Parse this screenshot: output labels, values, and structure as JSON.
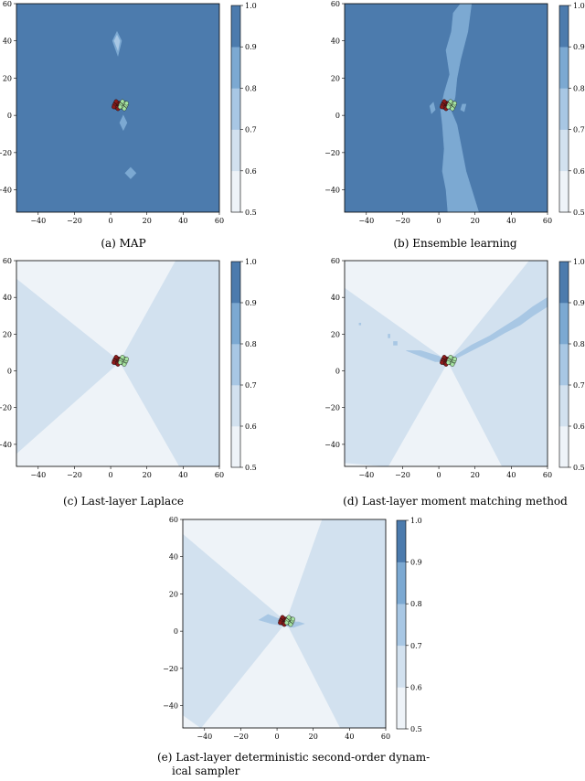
{
  "colors": {
    "level_0.5_0.6": "#eef3f8",
    "level_0.6_0.7": "#d2e1ef",
    "level_0.7_0.8": "#a8c7e4",
    "level_0.8_0.9": "#7ca9d2",
    "level_0.9_1.0": "#4c7bad",
    "class_a_points": "#8b1a1a",
    "class_b_points": "#a6e3a1"
  },
  "chart_data": [
    {
      "type": "contour",
      "caption": "(a) MAP",
      "xlim": [
        -52,
        60
      ],
      "ylim": [
        -52,
        60
      ],
      "xticks": [
        -40,
        -20,
        0,
        20,
        40,
        60
      ],
      "yticks": [
        -40,
        -20,
        0,
        20,
        40,
        60
      ],
      "colorbar": {
        "levels": [
          0.5,
          0.6,
          0.7,
          0.8,
          0.9,
          1.0
        ],
        "tick_labels": [
          "0.5",
          "0.6",
          "0.7",
          "0.8",
          "0.9",
          "1.0"
        ]
      },
      "background_level": 0.95,
      "regions": [
        {
          "level": 0.85,
          "points": [
            [
              3.5,
              45
            ],
            [
              6,
              40
            ],
            [
              4,
              32
            ],
            [
              1,
              40
            ]
          ]
        },
        {
          "level": 0.75,
          "points": [
            [
              3.5,
              43
            ],
            [
              5,
              40
            ],
            [
              4,
              35
            ],
            [
              2,
              40
            ]
          ]
        },
        {
          "level": 0.85,
          "points": [
            [
              7,
              0
            ],
            [
              9,
              -4
            ],
            [
              7,
              -8
            ],
            [
              5,
              -4
            ]
          ]
        },
        {
          "level": 0.85,
          "points": [
            [
              11,
              -28
            ],
            [
              14,
              -31
            ],
            [
              11,
              -34
            ],
            [
              8,
              -31
            ]
          ]
        }
      ],
      "data_points": [
        {
          "class": "a",
          "center": [
            3.5,
            5.5
          ]
        },
        {
          "class": "b",
          "center": [
            7,
            5.5
          ]
        }
      ]
    },
    {
      "type": "contour",
      "caption": "(b) Ensemble learning",
      "xlim": [
        -52,
        60
      ],
      "ylim": [
        -52,
        60
      ],
      "xticks": [
        -40,
        -20,
        0,
        20,
        40,
        60
      ],
      "yticks": [
        -40,
        -20,
        0,
        20,
        40,
        60
      ],
      "colorbar": {
        "levels": [
          0.5,
          0.6,
          0.7,
          0.8,
          0.9,
          1.0
        ],
        "tick_labels": [
          "0.5",
          "0.6",
          "0.7",
          "0.8",
          "0.9",
          "1.0"
        ]
      },
      "background_level": 0.95,
      "regions": [
        {
          "level": 0.85,
          "points": [
            [
              12,
              60
            ],
            [
              18,
              60
            ],
            [
              16,
              45
            ],
            [
              12,
              30
            ],
            [
              10,
              20
            ],
            [
              9,
              10
            ],
            [
              7,
              2
            ],
            [
              10,
              -5
            ],
            [
              12,
              -15
            ],
            [
              15,
              -30
            ],
            [
              22,
              -52
            ],
            [
              5,
              -52
            ],
            [
              4,
              -40
            ],
            [
              2,
              -30
            ],
            [
              3,
              -18
            ],
            [
              2,
              -5
            ],
            [
              1,
              3
            ],
            [
              3,
              12
            ],
            [
              6,
              22
            ],
            [
              4,
              35
            ],
            [
              7,
              45
            ],
            [
              8,
              55
            ]
          ]
        },
        {
          "level": 0.85,
          "points": [
            [
              -5,
              5
            ],
            [
              -3,
              7
            ],
            [
              -2,
              3
            ],
            [
              -4,
              1
            ]
          ]
        },
        {
          "level": 0.85,
          "points": [
            [
              13,
              6
            ],
            [
              15,
              6
            ],
            [
              14,
              2
            ],
            [
              12,
              3
            ]
          ]
        }
      ],
      "data_points": [
        {
          "class": "a",
          "center": [
            3.5,
            5.5
          ]
        },
        {
          "class": "b",
          "center": [
            7,
            5.5
          ]
        }
      ]
    },
    {
      "type": "contour",
      "caption": "(c) Last-layer Laplace",
      "xlim": [
        -52,
        60
      ],
      "ylim": [
        -52,
        60
      ],
      "xticks": [
        -40,
        -20,
        0,
        20,
        40,
        60
      ],
      "yticks": [
        -40,
        -20,
        0,
        20,
        40,
        60
      ],
      "colorbar": {
        "levels": [
          0.5,
          0.6,
          0.7,
          0.8,
          0.9,
          1.0
        ],
        "tick_labels": [
          "0.5",
          "0.6",
          "0.7",
          "0.8",
          "0.9",
          "1.0"
        ]
      },
      "background_level": 0.55,
      "regions": [
        {
          "level": 0.65,
          "points": [
            [
              -52,
              50
            ],
            [
              -52,
              -45
            ],
            [
              5,
              5
            ]
          ]
        },
        {
          "level": 0.65,
          "points": [
            [
              5,
              5
            ],
            [
              36,
              60
            ],
            [
              60,
              60
            ],
            [
              60,
              -52
            ],
            [
              38,
              -52
            ]
          ]
        }
      ],
      "data_points": [
        {
          "class": "a",
          "center": [
            3.5,
            5.5
          ]
        },
        {
          "class": "b",
          "center": [
            7,
            5.5
          ]
        }
      ]
    },
    {
      "type": "contour",
      "caption": "(d) Last-layer moment matching method",
      "xlim": [
        -52,
        60
      ],
      "ylim": [
        -52,
        60
      ],
      "xticks": [
        -40,
        -20,
        0,
        20,
        40,
        60
      ],
      "yticks": [
        -40,
        -20,
        0,
        20,
        40,
        60
      ],
      "colorbar": {
        "levels": [
          0.5,
          0.6,
          0.7,
          0.8,
          0.9,
          1.0
        ],
        "tick_labels": [
          "0.5",
          "0.6",
          "0.7",
          "0.8",
          "0.9",
          "1.0"
        ]
      },
      "background_level": 0.55,
      "regions": [
        {
          "level": 0.65,
          "points": [
            [
              -52,
              45
            ],
            [
              -52,
              -50
            ],
            [
              -28,
              -52
            ],
            [
              5,
              5
            ]
          ]
        },
        {
          "level": 0.65,
          "points": [
            [
              5,
              5
            ],
            [
              50,
              60
            ],
            [
              60,
              60
            ],
            [
              60,
              -52
            ],
            [
              35,
              -52
            ]
          ]
        },
        {
          "level": 0.75,
          "points": [
            [
              -18,
              11
            ],
            [
              -10,
              11
            ],
            [
              0,
              8
            ],
            [
              4,
              5
            ],
            [
              -2,
              5
            ],
            [
              -10,
              8
            ]
          ]
        },
        {
          "level": 0.75,
          "points": [
            [
              6,
              5
            ],
            [
              14,
              9
            ],
            [
              22,
              13
            ],
            [
              30,
              17
            ],
            [
              37,
              21
            ],
            [
              45,
              25
            ],
            [
              52,
              30
            ],
            [
              60,
              35
            ],
            [
              60,
              40
            ],
            [
              52,
              35
            ],
            [
              44,
              29
            ],
            [
              36,
              24
            ],
            [
              28,
              19
            ],
            [
              18,
              14
            ],
            [
              10,
              9
            ]
          ]
        },
        {
          "level": 0.75,
          "points": [
            [
              -44,
              26
            ],
            [
              -43,
              26
            ],
            [
              -43,
              25
            ],
            [
              -44,
              25
            ]
          ]
        },
        {
          "level": 0.75,
          "points": [
            [
              -28,
              20
            ],
            [
              -27,
              20
            ],
            [
              -27,
              18
            ],
            [
              -28,
              18
            ]
          ]
        },
        {
          "level": 0.75,
          "points": [
            [
              -25,
              16
            ],
            [
              -23,
              16
            ],
            [
              -23,
              14
            ],
            [
              -25,
              14
            ]
          ]
        }
      ],
      "data_points": [
        {
          "class": "a",
          "center": [
            3.5,
            5.5
          ]
        },
        {
          "class": "b",
          "center": [
            7,
            5.5
          ]
        }
      ]
    },
    {
      "type": "contour",
      "caption": "(e) Last-layer deterministic second-order dynam-ical sampler",
      "xlim": [
        -52,
        60
      ],
      "ylim": [
        -52,
        60
      ],
      "xticks": [
        -40,
        -20,
        0,
        20,
        40,
        60
      ],
      "yticks": [
        -40,
        -20,
        0,
        20,
        40,
        60
      ],
      "colorbar": {
        "levels": [
          0.5,
          0.6,
          0.7,
          0.8,
          0.9,
          1.0
        ],
        "tick_labels": [
          "0.5",
          "0.6",
          "0.7",
          "0.8",
          "0.9",
          "1.0"
        ]
      },
      "background_level": 0.55,
      "regions": [
        {
          "level": 0.65,
          "points": [
            [
              -52,
              52
            ],
            [
              -52,
              -45
            ],
            [
              -42,
              -52
            ],
            [
              5,
              5
            ]
          ]
        },
        {
          "level": 0.65,
          "points": [
            [
              5,
              5
            ],
            [
              25,
              60
            ],
            [
              60,
              60
            ],
            [
              60,
              -52
            ],
            [
              35,
              -52
            ]
          ]
        },
        {
          "level": 0.75,
          "points": [
            [
              -10,
              6
            ],
            [
              -5,
              9
            ],
            [
              0,
              7
            ],
            [
              5,
              5
            ],
            [
              12,
              5
            ],
            [
              15,
              4
            ],
            [
              9,
              2
            ],
            [
              3,
              3
            ],
            [
              -3,
              4
            ]
          ]
        }
      ],
      "data_points": [
        {
          "class": "a",
          "center": [
            3.5,
            5.5
          ]
        },
        {
          "class": "b",
          "center": [
            7,
            5.5
          ]
        }
      ]
    }
  ]
}
